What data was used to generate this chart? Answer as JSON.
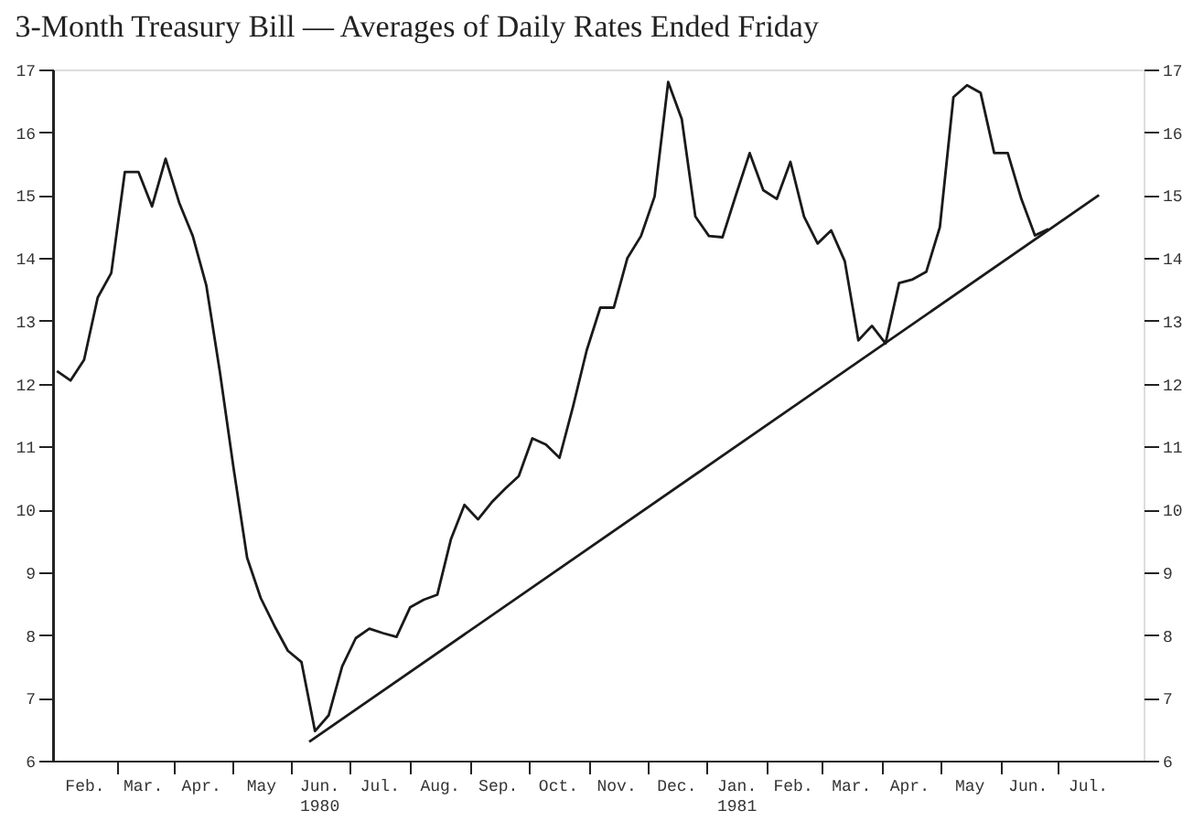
{
  "chart_data": {
    "type": "line",
    "title": "3-Month Treasury Bill — Averages of Daily Rates Ended Friday",
    "series": [
      {
        "color": "#1a1a1a",
        "x": [
          "1980-02-01",
          "1980-02-08",
          "1980-02-15",
          "1980-02-22",
          "1980-02-29",
          "1980-03-07",
          "1980-03-14",
          "1980-03-21",
          "1980-03-28",
          "1980-04-04",
          "1980-04-11",
          "1980-04-18",
          "1980-04-25",
          "1980-05-02",
          "1980-05-09",
          "1980-05-16",
          "1980-05-23",
          "1980-05-30",
          "1980-06-06",
          "1980-06-13",
          "1980-06-20",
          "1980-06-27",
          "1980-07-04",
          "1980-07-11",
          "1980-07-18",
          "1980-07-25",
          "1980-08-01",
          "1980-08-08",
          "1980-08-15",
          "1980-08-22",
          "1980-08-29",
          "1980-09-05",
          "1980-09-12",
          "1980-09-19",
          "1980-09-26",
          "1980-10-03",
          "1980-10-10",
          "1980-10-17",
          "1980-10-24",
          "1980-10-31",
          "1980-11-07",
          "1980-11-14",
          "1980-11-21",
          "1980-11-28",
          "1980-12-05",
          "1980-12-12",
          "1980-12-19",
          "1980-12-26",
          "1981-01-02",
          "1981-01-09",
          "1981-01-16",
          "1981-01-23",
          "1981-01-30",
          "1981-02-06",
          "1981-02-13",
          "1981-02-20",
          "1981-02-27",
          "1981-03-06",
          "1981-03-13",
          "1981-03-20",
          "1981-03-27",
          "1981-04-03",
          "1981-04-10",
          "1981-04-17",
          "1981-04-24",
          "1981-05-01",
          "1981-05-08",
          "1981-05-15",
          "1981-05-22",
          "1981-05-29",
          "1981-06-05",
          "1981-06-12",
          "1981-06-19",
          "1981-06-26"
        ],
        "values": [
          12.2,
          12.05,
          12.38,
          13.37,
          13.76,
          15.37,
          15.37,
          14.82,
          15.58,
          14.88,
          14.35,
          13.56,
          12.18,
          10.66,
          9.23,
          8.59,
          8.15,
          7.75,
          7.57,
          6.47,
          6.72,
          7.5,
          7.95,
          8.1,
          8.03,
          7.97,
          8.44,
          8.56,
          8.64,
          9.52,
          10.07,
          9.84,
          10.11,
          10.33,
          10.53,
          11.13,
          11.03,
          10.82,
          11.64,
          12.53,
          13.21,
          13.21,
          14.0,
          14.35,
          14.98,
          16.8,
          16.21,
          14.66,
          14.35,
          14.33,
          15.01,
          15.67,
          15.08,
          14.94,
          15.53,
          14.66,
          14.23,
          14.44,
          13.95,
          12.69,
          12.92,
          12.64,
          13.6,
          13.66,
          13.78,
          14.49,
          16.56,
          16.75,
          16.63,
          15.67,
          15.67,
          14.94,
          14.36,
          14.46
        ]
      },
      {
        "color": "#1a1a1a",
        "x": [
          "1980-06-10",
          "1981-07-22"
        ],
        "values": [
          6.3,
          15.0
        ]
      }
    ],
    "xlim": [
      "1980-01-30",
      "1981-08-14"
    ],
    "xticks": [
      {
        "value": "1980-02-15",
        "label": "Feb."
      },
      {
        "value": "1980-03-03",
        "label": null
      },
      {
        "value": "1980-03-16",
        "label": "Mar."
      },
      {
        "value": "1980-04-01",
        "label": null
      },
      {
        "value": "1980-04-15",
        "label": "Apr."
      },
      {
        "value": "1980-05-01",
        "label": null
      },
      {
        "value": "1980-05-16",
        "label": "May"
      },
      {
        "value": "1980-06-01",
        "label": null
      },
      {
        "value": "1980-06-15",
        "label": "Jun. 1980"
      },
      {
        "value": "1980-07-01",
        "label": null
      },
      {
        "value": "1980-07-16",
        "label": "Jul."
      },
      {
        "value": "1980-08-01",
        "label": null
      },
      {
        "value": "1980-08-16",
        "label": "Aug."
      },
      {
        "value": "1980-09-01",
        "label": null
      },
      {
        "value": "1980-09-15",
        "label": "Sep."
      },
      {
        "value": "1980-10-01",
        "label": null
      },
      {
        "value": "1980-10-16",
        "label": "Oct."
      },
      {
        "value": "1980-11-01",
        "label": null
      },
      {
        "value": "1980-11-15",
        "label": "Nov."
      },
      {
        "value": "1980-12-01",
        "label": null
      },
      {
        "value": "1980-12-16",
        "label": "Dec."
      },
      {
        "value": "1981-01-01",
        "label": null
      },
      {
        "value": "1981-01-16",
        "label": "Jan. 1981"
      },
      {
        "value": "1981-02-01",
        "label": null
      },
      {
        "value": "1981-02-14",
        "label": "Feb."
      },
      {
        "value": "1981-03-01",
        "label": null
      },
      {
        "value": "1981-03-16",
        "label": "Mar."
      },
      {
        "value": "1981-04-01",
        "label": null
      },
      {
        "value": "1981-04-15",
        "label": "Apr."
      },
      {
        "value": "1981-05-01",
        "label": null
      },
      {
        "value": "1981-05-16",
        "label": "May"
      },
      {
        "value": "1981-06-01",
        "label": null
      },
      {
        "value": "1981-06-15",
        "label": "Jun."
      },
      {
        "value": "1981-07-01",
        "label": null
      },
      {
        "value": "1981-07-16",
        "label": "Jul."
      }
    ],
    "ylim": [
      6,
      17
    ],
    "yticks": [
      6,
      7,
      8,
      9,
      10,
      11,
      12,
      13,
      14,
      15,
      16,
      17
    ],
    "y2lim": [
      6,
      17
    ],
    "y2ticks": [
      6,
      7,
      8,
      9,
      10,
      11,
      12,
      13,
      14,
      15,
      16,
      17
    ],
    "grid": false,
    "marker": "none",
    "line_style": "solid"
  }
}
